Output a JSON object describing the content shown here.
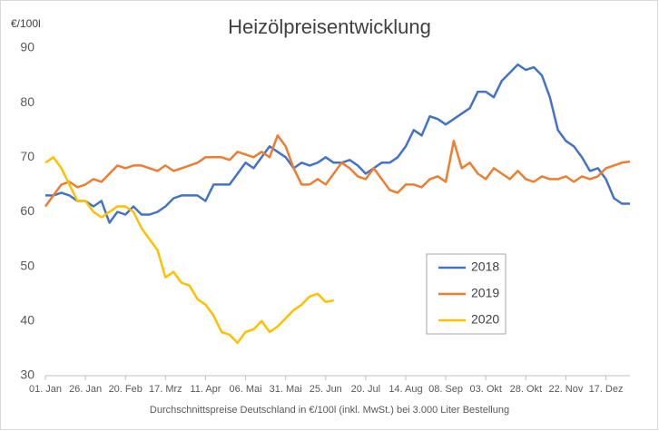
{
  "chart_data": {
    "type": "line",
    "title": "Heizölpreisentwicklung",
    "y_label": "€/100l",
    "x_label": "Durchschnittspreise Deutschland in €/100l (inkl. MwSt.) bei 3.000 Liter Bestellung",
    "categories": [
      "01. Jan",
      null,
      null,
      null,
      null,
      "26. Jan",
      null,
      null,
      null,
      null,
      "20. Feb",
      null,
      null,
      null,
      null,
      "17. Mrz",
      null,
      null,
      null,
      null,
      "11. Apr",
      null,
      null,
      null,
      null,
      "06. Mai",
      null,
      null,
      null,
      null,
      "31. Mai",
      null,
      null,
      null,
      null,
      "25. Jun",
      null,
      null,
      null,
      null,
      "20. Jul",
      null,
      null,
      null,
      null,
      "14. Aug",
      null,
      null,
      null,
      null,
      "08. Sep",
      null,
      null,
      null,
      null,
      "03. Okt",
      null,
      null,
      null,
      null,
      "28. Okt",
      null,
      null,
      null,
      null,
      "22. Nov",
      null,
      null,
      null,
      null,
      "17. Dez",
      null,
      null,
      null
    ],
    "series": [
      {
        "name": "2018",
        "color": "#4472c4",
        "values": [
          63,
          63,
          63.5,
          63,
          62,
          62,
          61,
          62,
          58,
          60,
          59.5,
          61,
          59.5,
          59.5,
          60,
          61,
          62.5,
          63,
          63,
          63,
          62,
          65,
          65,
          65,
          67,
          69,
          68,
          70,
          72,
          71,
          70,
          68,
          69,
          68.5,
          69,
          70,
          69,
          69,
          69.5,
          68.5,
          67,
          68,
          69,
          69,
          70,
          72,
          75,
          74,
          77.5,
          77,
          76,
          77,
          78,
          79,
          82,
          82,
          81,
          84,
          85.5,
          87,
          86,
          86.5,
          85,
          81,
          75,
          73,
          72,
          70,
          67.5,
          68,
          66,
          62.5,
          61.5,
          61.5
        ]
      },
      {
        "name": "2019",
        "color": "#ed7d31",
        "values": [
          61,
          63,
          65,
          65.5,
          64.5,
          65,
          66,
          65.5,
          67,
          68.5,
          68,
          68.5,
          68.5,
          68,
          67.5,
          68.5,
          67.5,
          68,
          68.5,
          69,
          70,
          70,
          70,
          69.5,
          71,
          70.5,
          70,
          71,
          70,
          74,
          72,
          68,
          65,
          65,
          66,
          65,
          67,
          69,
          68,
          66.5,
          66,
          68,
          66,
          64,
          63.5,
          65,
          65,
          64.5,
          66,
          66.5,
          65.5,
          73,
          68,
          69,
          67,
          66,
          68,
          67,
          66,
          67.5,
          66,
          65.5,
          66.5,
          66,
          66,
          66.5,
          65.5,
          66.5,
          66,
          66.5,
          68,
          68.5,
          69,
          69.2
        ]
      },
      {
        "name": "2020",
        "color": "#ffc000",
        "values": [
          69,
          70,
          68,
          65,
          62,
          62,
          60,
          59,
          60,
          61,
          61,
          60,
          57,
          55,
          53,
          48,
          49,
          47,
          46.5,
          44,
          43,
          41,
          38,
          37.5,
          36,
          38,
          38.5,
          40,
          38,
          39,
          40.5,
          42,
          43,
          44.5,
          45,
          43.5,
          43.8,
          null,
          null,
          null,
          null,
          null,
          null,
          null,
          null,
          null,
          null,
          null,
          null,
          null,
          null,
          null,
          null,
          null,
          null,
          null,
          null,
          null,
          null,
          null,
          null,
          null,
          null,
          null,
          null,
          null,
          null,
          null,
          null,
          null,
          null,
          null,
          null,
          null
        ]
      }
    ],
    "ylim": [
      30,
      90
    ],
    "yticks": [
      30,
      40,
      50,
      60,
      70,
      80,
      90
    ],
    "grid": false,
    "legend": "right"
  }
}
